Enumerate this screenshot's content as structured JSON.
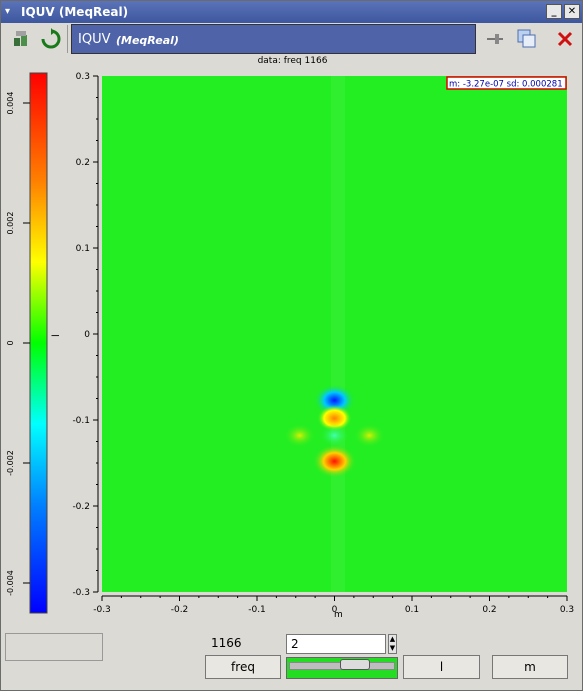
{
  "window": {
    "title": "IQUV (MeqReal)"
  },
  "banner": {
    "title": "IQUV",
    "subtitle": "(MeqReal)"
  },
  "plot": {
    "subtitle": "data: freq 1166",
    "stats_box": "m: -3.27e-07 sd: 0.000281",
    "xlabel": "m",
    "ylabel": "l",
    "x_ticks": [
      "-0.3",
      "-0.2",
      "-0.1",
      "0",
      "0.1",
      "0.2",
      "0.3"
    ],
    "y_ticks": [
      "0.3",
      "0.2",
      "0.1",
      "0",
      "-0.1",
      "-0.2",
      "-0.3"
    ],
    "colorbar_ticks": [
      "0.004",
      "0.002",
      "0",
      "-0.002",
      "-0.004"
    ]
  },
  "chart_data": {
    "type": "heatmap",
    "subtitle": "data: freq 1166",
    "xlabel": "m",
    "ylabel": "l",
    "xlim": [
      -0.3,
      0.3
    ],
    "ylim": [
      -0.3,
      0.3
    ],
    "color_range": [
      -0.0045,
      0.0045
    ],
    "colormap": "jet",
    "stats": {
      "mean": "-3.27e-07",
      "sd": "0.000281"
    },
    "features": [
      {
        "m": 0.0,
        "l": -0.077,
        "value": -0.004
      },
      {
        "m": 0.0,
        "l": -0.098,
        "value": 0.0025
      },
      {
        "m": 0.0,
        "l": -0.148,
        "value": 0.0045
      },
      {
        "m": -0.045,
        "l": -0.118,
        "value": 0.0018
      },
      {
        "m": 0.045,
        "l": -0.118,
        "value": 0.0018
      },
      {
        "m": 0.0,
        "l": -0.118,
        "value": -0.0015
      }
    ]
  },
  "controls": {
    "freq_value": "1166",
    "spin_value": "2",
    "freq_button": "freq",
    "l_button": "l",
    "m_button": "m"
  },
  "colors": {
    "background_field": "#22ee22",
    "banner": "#4f64a8"
  }
}
